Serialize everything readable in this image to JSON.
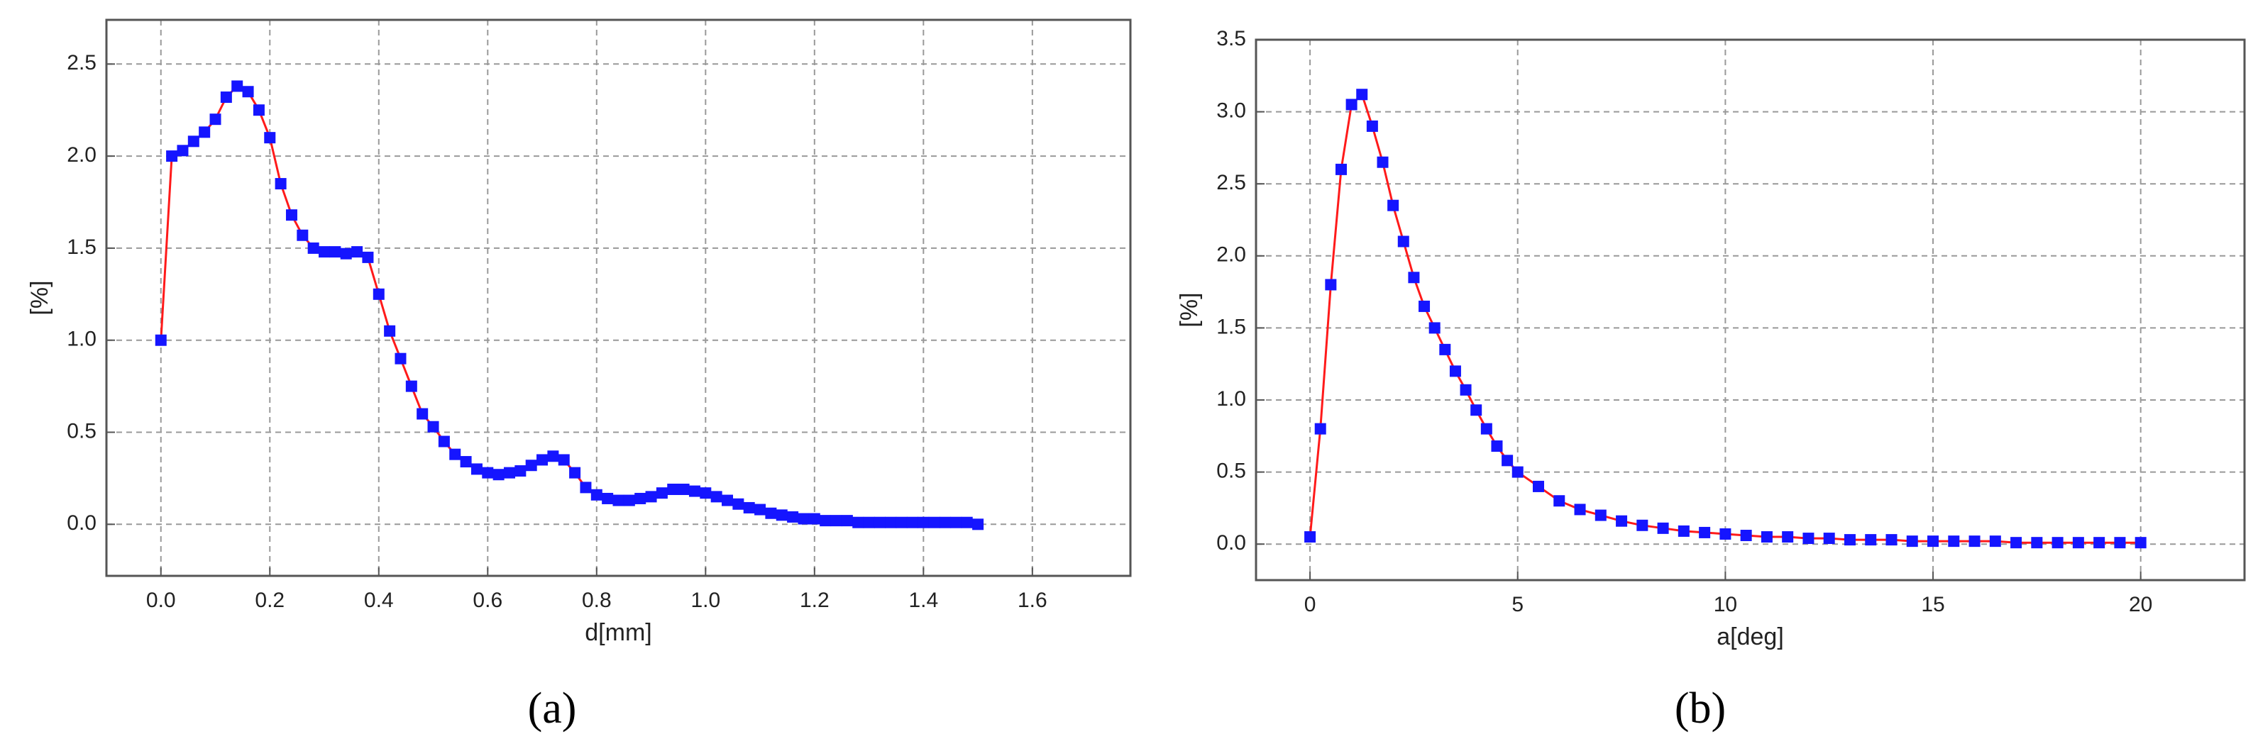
{
  "chart_data": [
    {
      "type": "scatter",
      "caption": "(a)",
      "xlabel": "d[mm]",
      "ylabel": "[%]",
      "marker_color": "#1515ff",
      "line_color": "#ff1a1a",
      "grid": true,
      "xlim": [
        -0.1,
        1.78
      ],
      "ylim": [
        -0.28,
        2.74
      ],
      "xticks": [
        {
          "value": 0,
          "label": "0.0"
        },
        {
          "value": 0.2,
          "label": "0.2"
        },
        {
          "value": 0.4,
          "label": "0.4"
        },
        {
          "value": 0.6,
          "label": "0.6"
        },
        {
          "value": 0.8,
          "label": "0.8"
        },
        {
          "value": 1,
          "label": "1.0"
        },
        {
          "value": 1.2,
          "label": "1.2"
        },
        {
          "value": 1.4,
          "label": "1.4"
        },
        {
          "value": 1.6,
          "label": "1.6"
        }
      ],
      "yticks": [
        {
          "value": 0,
          "label": "0.0"
        },
        {
          "value": 0.5,
          "label": "0.5"
        },
        {
          "value": 1,
          "label": "1.0"
        },
        {
          "value": 1.5,
          "label": "1.5"
        },
        {
          "value": 2,
          "label": "2.0"
        },
        {
          "value": 2.5,
          "label": "2.5"
        }
      ],
      "x": [
        0,
        0.02,
        0.04,
        0.06,
        0.08,
        0.1,
        0.12,
        0.14,
        0.16,
        0.18,
        0.2,
        0.22,
        0.24,
        0.26,
        0.28,
        0.3,
        0.32,
        0.34,
        0.36,
        0.38,
        0.4,
        0.42,
        0.44,
        0.46,
        0.48,
        0.5,
        0.52,
        0.54,
        0.56,
        0.58,
        0.6,
        0.62,
        0.64,
        0.66,
        0.68,
        0.7,
        0.72,
        0.74,
        0.76,
        0.78,
        0.8,
        0.82,
        0.84,
        0.86,
        0.88,
        0.9,
        0.92,
        0.94,
        0.96,
        0.98,
        1,
        1.02,
        1.04,
        1.06,
        1.08,
        1.1,
        1.12,
        1.14,
        1.16,
        1.18,
        1.2,
        1.22,
        1.24,
        1.26,
        1.28,
        1.3,
        1.32,
        1.34,
        1.36,
        1.38,
        1.4,
        1.42,
        1.44,
        1.46,
        1.48,
        1.5
      ],
      "values": [
        1.0,
        2.0,
        2.03,
        2.08,
        2.13,
        2.2,
        2.32,
        2.38,
        2.35,
        2.25,
        2.1,
        1.85,
        1.68,
        1.57,
        1.5,
        1.48,
        1.48,
        1.47,
        1.48,
        1.45,
        1.25,
        1.05,
        0.9,
        0.75,
        0.6,
        0.53,
        0.45,
        0.38,
        0.34,
        0.3,
        0.28,
        0.27,
        0.28,
        0.29,
        0.32,
        0.35,
        0.37,
        0.35,
        0.28,
        0.2,
        0.16,
        0.14,
        0.13,
        0.13,
        0.14,
        0.15,
        0.17,
        0.19,
        0.19,
        0.18,
        0.17,
        0.15,
        0.13,
        0.11,
        0.09,
        0.08,
        0.06,
        0.05,
        0.04,
        0.03,
        0.03,
        0.02,
        0.02,
        0.02,
        0.01,
        0.01,
        0.01,
        0.01,
        0.01,
        0.01,
        0.01,
        0.01,
        0.01,
        0.01,
        0.01,
        0.0
      ]
    },
    {
      "type": "scatter",
      "caption": "(b)",
      "xlabel": "a[deg]",
      "ylabel": "[%]",
      "marker_color": "#1515ff",
      "line_color": "#ff1a1a",
      "grid": true,
      "xlim": [
        -1.3,
        22.5
      ],
      "ylim": [
        -0.25,
        3.5
      ],
      "xticks": [
        0,
        5,
        10,
        15,
        20
      ],
      "yticks": [
        {
          "value": 0,
          "label": "0.0"
        },
        {
          "value": 0.5,
          "label": "0.5"
        },
        {
          "value": 1,
          "label": "1.0"
        },
        {
          "value": 1.5,
          "label": "1.5"
        },
        {
          "value": 2,
          "label": "2.0"
        },
        {
          "value": 2.5,
          "label": "2.5"
        },
        {
          "value": 3,
          "label": "3.0"
        },
        {
          "value": 3.5,
          "label": "3.5"
        }
      ],
      "x": [
        0,
        0.25,
        0.5,
        0.75,
        1,
        1.25,
        1.5,
        1.75,
        2,
        2.25,
        2.5,
        2.75,
        3,
        3.25,
        3.5,
        3.75,
        4,
        4.25,
        4.5,
        4.75,
        5,
        5.5,
        6,
        6.5,
        7,
        7.5,
        8,
        8.5,
        9,
        9.5,
        10,
        10.5,
        11,
        11.5,
        12,
        12.5,
        13,
        13.5,
        14,
        14.5,
        15,
        15.5,
        16,
        16.5,
        17,
        17.5,
        18,
        18.5,
        19,
        19.5,
        20
      ],
      "values": [
        0.05,
        0.8,
        1.8,
        2.6,
        3.05,
        3.12,
        2.9,
        2.65,
        2.35,
        2.1,
        1.85,
        1.65,
        1.5,
        1.35,
        1.2,
        1.07,
        0.93,
        0.8,
        0.68,
        0.58,
        0.5,
        0.4,
        0.3,
        0.24,
        0.2,
        0.16,
        0.13,
        0.11,
        0.09,
        0.08,
        0.07,
        0.06,
        0.05,
        0.05,
        0.04,
        0.04,
        0.03,
        0.03,
        0.03,
        0.02,
        0.02,
        0.02,
        0.02,
        0.02,
        0.01,
        0.01,
        0.01,
        0.01,
        0.01,
        0.01,
        0.01
      ]
    }
  ]
}
